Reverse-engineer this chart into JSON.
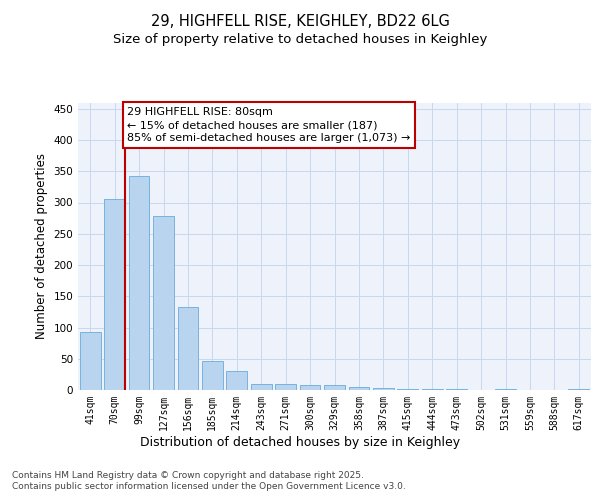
{
  "title1": "29, HIGHFELL RISE, KEIGHLEY, BD22 6LG",
  "title2": "Size of property relative to detached houses in Keighley",
  "xlabel": "Distribution of detached houses by size in Keighley",
  "ylabel": "Number of detached properties",
  "categories": [
    "41sqm",
    "70sqm",
    "99sqm",
    "127sqm",
    "156sqm",
    "185sqm",
    "214sqm",
    "243sqm",
    "271sqm",
    "300sqm",
    "329sqm",
    "358sqm",
    "387sqm",
    "415sqm",
    "444sqm",
    "473sqm",
    "502sqm",
    "531sqm",
    "559sqm",
    "588sqm",
    "617sqm"
  ],
  "values": [
    93,
    305,
    343,
    278,
    133,
    46,
    30,
    9,
    10,
    8,
    8,
    5,
    3,
    1,
    2,
    1,
    0,
    1,
    0,
    0,
    2
  ],
  "bar_color": "#b8d4ee",
  "bar_edge_color": "#6aabdc",
  "grid_color": "#c8d8ee",
  "bg_color": "#eef2fb",
  "vline_color": "#bb0000",
  "annotation_text": "29 HIGHFELL RISE: 80sqm\n← 15% of detached houses are smaller (187)\n85% of semi-detached houses are larger (1,073) →",
  "vline_x": 1.425,
  "ylim_max": 460,
  "yticks": [
    0,
    50,
    100,
    150,
    200,
    250,
    300,
    350,
    400,
    450
  ],
  "footer": "Contains HM Land Registry data © Crown copyright and database right 2025.\nContains public sector information licensed under the Open Government Licence v3.0.",
  "title_fontsize": 10.5,
  "subtitle_fontsize": 9.5,
  "ylabel_fontsize": 8.5,
  "xlabel_fontsize": 9,
  "tick_fontsize": 7,
  "footer_fontsize": 6.5,
  "ann_fontsize": 8
}
